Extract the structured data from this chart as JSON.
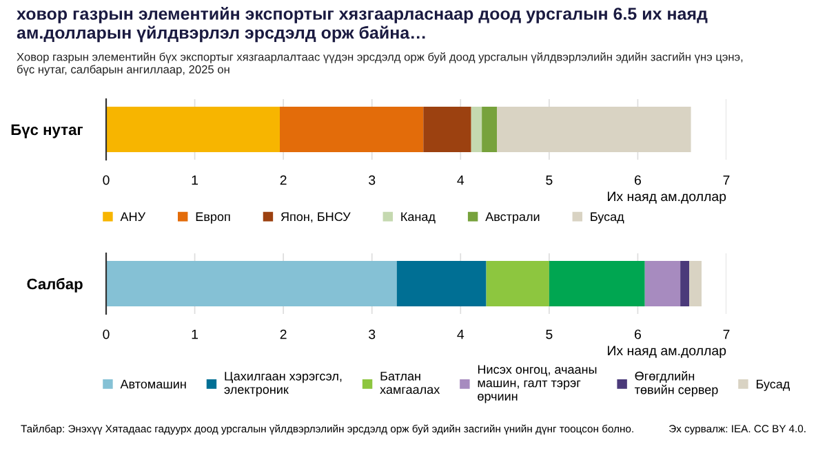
{
  "chart_data": [
    {
      "type": "bar",
      "orientation": "horizontal",
      "stacked": true,
      "title": "ховор газрын элементийн экспортыг хязгаарласнаар доод урсгалын 6.5 их наяд ам.долларын үйлдвэрлэл эрсдэлд орж байна…",
      "subtitle": "Ховор газрын элементийн бүх экспортыг хязгаарлалтаас үүдэн эрсдэлд орж буй доод урсгалын үйлдвэрлэлийн эдийн засгийн үнэ цэнэ,\nбүс нутаг, салбарын ангиллаар, 2025 он",
      "categories": [
        "Бүс нутаг"
      ],
      "xlabel": "Их наяд ам.доллар",
      "xlim": [
        0,
        7
      ],
      "xticks": [
        0,
        1,
        2,
        3,
        4,
        5,
        6,
        7
      ],
      "grid": "x",
      "legend": "bottom",
      "series": [
        {
          "name": "АНУ",
          "color": "#f7b500",
          "values": [
            1.96
          ]
        },
        {
          "name": "Европ",
          "color": "#e36c0a",
          "values": [
            1.62
          ]
        },
        {
          "name": "Япон, БНСУ",
          "color": "#9c4110",
          "values": [
            0.54
          ]
        },
        {
          "name": "Канад",
          "color": "#c5d9b0",
          "values": [
            0.12
          ]
        },
        {
          "name": "Австрали",
          "color": "#77a23c",
          "values": [
            0.17
          ]
        },
        {
          "name": "Бусад",
          "color": "#d9d3c3",
          "values": [
            2.19
          ]
        }
      ]
    },
    {
      "type": "bar",
      "orientation": "horizontal",
      "stacked": true,
      "categories": [
        "Салбар"
      ],
      "xlabel": "Их наяд ам.доллар",
      "xlim": [
        0,
        7
      ],
      "xticks": [
        0,
        1,
        2,
        3,
        4,
        5,
        6,
        7
      ],
      "grid": "x",
      "legend": "bottom",
      "annotations": [
        "Тайлбар: Энэхүү Хятадаас гадуурх доод урсгалын үйлдвэрлэлийн эрсдэлд орж буй эдийн засгийн үнийн дүнг тооцсон болно.",
        "Эх сурвалж: IEA. CC BY 4.0."
      ],
      "series": [
        {
          "name": "Автомашин",
          "color": "#85c1d5",
          "values": [
            3.28
          ]
        },
        {
          "name": "Цахилгаан хэрэгсэл,\nэлектроник",
          "color": "#006f94",
          "values": [
            1.01
          ]
        },
        {
          "name": "Батлан\nхамгаалах",
          "color": "#8dc63f",
          "values": [
            0.71
          ]
        },
        {
          "color": "#00a651",
          "values": [
            1.08
          ]
        },
        {
          "name": "Нисэх онгоц, ачааны\nмашин, галт тэрэг\nөрчиин",
          "color": "#a78bbf",
          "values": [
            0.4
          ]
        },
        {
          "name": "Өгөгдлийн\nтөвийн сервер",
          "color": "#4b3a7a",
          "values": [
            0.1
          ]
        },
        {
          "name": "Бусад",
          "color": "#d9d3c3",
          "values": [
            0.14
          ]
        }
      ]
    }
  ]
}
